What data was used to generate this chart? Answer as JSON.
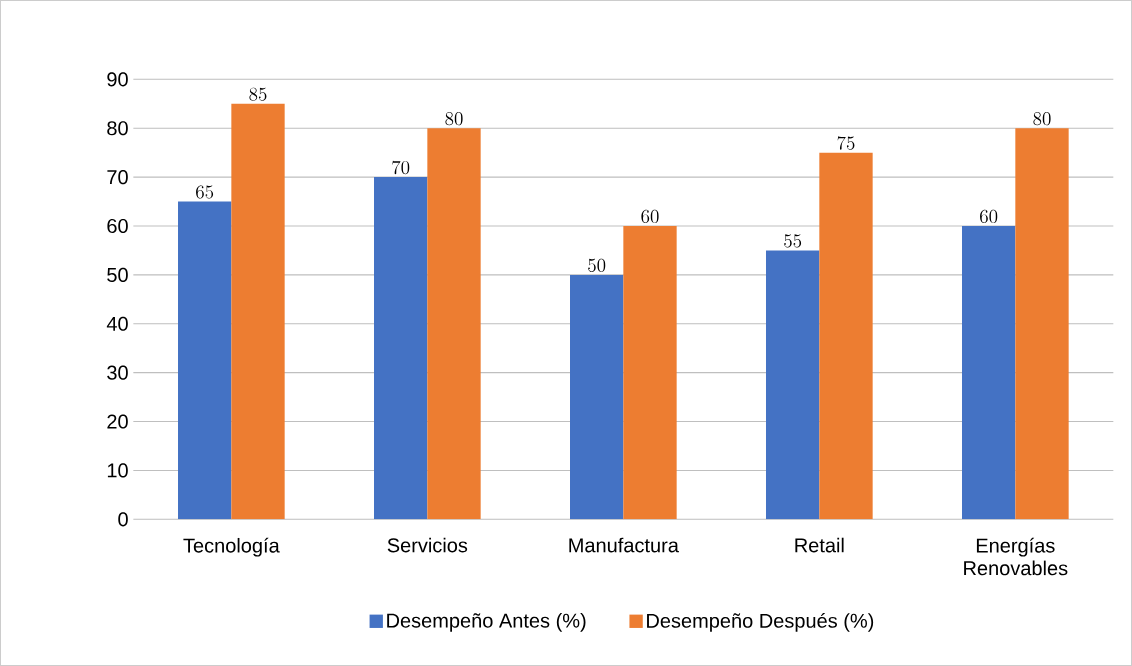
{
  "chart_data": {
    "type": "bar",
    "categories": [
      "Tecnología",
      "Servicios",
      "Manufactura",
      "Retail",
      "Energías Renovables"
    ],
    "series": [
      {
        "name": "Desempeño Antes (%)",
        "color": "#4472c4",
        "values": [
          65,
          70,
          50,
          55,
          60
        ]
      },
      {
        "name": "Desempeño Después (%)",
        "color": "#ed7d31",
        "values": [
          85,
          80,
          60,
          75,
          80
        ]
      }
    ],
    "ylim": [
      0,
      90
    ],
    "yticks": [
      0,
      10,
      20,
      30,
      40,
      50,
      60,
      70,
      80,
      90
    ],
    "grid": "y",
    "legend": "bottom",
    "data_labels": true
  }
}
